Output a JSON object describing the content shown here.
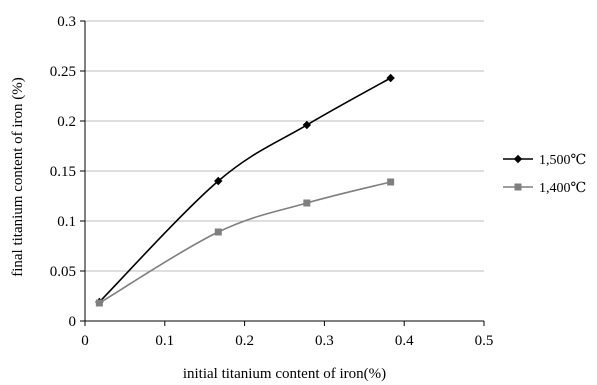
{
  "chart_data": {
    "type": "line",
    "xlabel": "initial titanium content of iron(%)",
    "ylabel": "final titanium content of iron (%)",
    "xlim": [
      0,
      0.5
    ],
    "ylim": [
      0,
      0.3
    ],
    "x_ticks": [
      0,
      0.1,
      0.2,
      0.3,
      0.4,
      0.5
    ],
    "y_ticks": [
      0,
      0.05,
      0.1,
      0.15,
      0.2,
      0.25,
      0.3
    ],
    "x_tick_labels": [
      "0",
      "0.1",
      "0.2",
      "0.3",
      "0.4",
      "0.5"
    ],
    "y_tick_labels": [
      "0",
      "0.05",
      "0.1",
      "0.15",
      "0.2",
      "0.25",
      "0.3"
    ],
    "grid": "horizontal",
    "legend_position": "right",
    "series": [
      {
        "name": "1,500℃",
        "marker": "diamond",
        "color": "#000000",
        "x": [
          0.018,
          0.167,
          0.278,
          0.383
        ],
        "y": [
          0.019,
          0.14,
          0.196,
          0.243
        ]
      },
      {
        "name": "1,400℃",
        "marker": "square",
        "color": "#7f7f7f",
        "x": [
          0.018,
          0.167,
          0.278,
          0.383
        ],
        "y": [
          0.018,
          0.089,
          0.118,
          0.139
        ]
      }
    ]
  }
}
